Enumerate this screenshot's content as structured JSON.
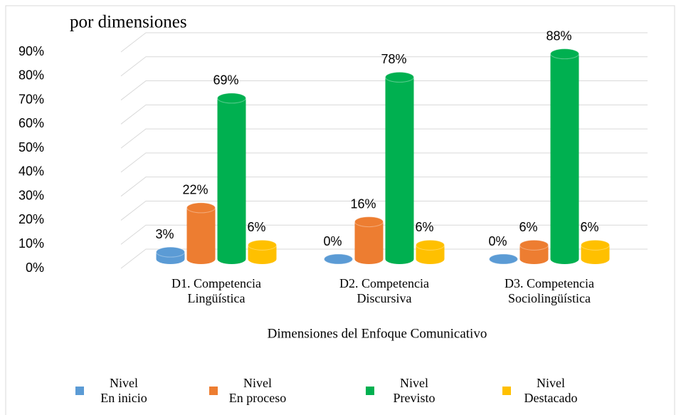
{
  "chart_data": {
    "type": "bar3d",
    "title": "por dimensiones",
    "x_label": "Dimensiones del Enfoque Comunicativo",
    "categories": [
      "D1.  Competencia\nLingüística",
      "D2. Competencia\nDiscursiva",
      "D3. Competencia\nSociolingüística"
    ],
    "series": [
      {
        "name": "Nivel\nEn inicio",
        "color": "#5b9bd5",
        "values": [
          3,
          0,
          0
        ],
        "value_labels": [
          "3%",
          "0%",
          "0%"
        ]
      },
      {
        "name": "Nivel\nEn proceso",
        "color": "#ed7d31",
        "values": [
          22,
          16,
          6
        ],
        "value_labels": [
          "22%",
          "16%",
          "6%"
        ]
      },
      {
        "name": "Nivel\nPrevisto",
        "color": "#00b050",
        "values": [
          69,
          78,
          88
        ],
        "value_labels": [
          "69%",
          "78%",
          "88%"
        ]
      },
      {
        "name": "Nivel\nDestacado",
        "color": "#ffc000",
        "values": [
          6,
          6,
          6
        ],
        "value_labels": [
          "6%",
          "6%",
          "6%"
        ]
      }
    ],
    "ylim": [
      0,
      90
    ],
    "yticks": [
      {
        "value": 0,
        "label": "0%"
      },
      {
        "value": 10,
        "label": "10%"
      },
      {
        "value": 20,
        "label": "20%"
      },
      {
        "value": 30,
        "label": "30%"
      },
      {
        "value": 40,
        "label": "40%"
      },
      {
        "value": 50,
        "label": "50%"
      },
      {
        "value": 60,
        "label": "60%"
      },
      {
        "value": 70,
        "label": "70%"
      },
      {
        "value": 80,
        "label": "80%"
      },
      {
        "value": 90,
        "label": "90%"
      }
    ],
    "grid": true,
    "legend": "bottom"
  }
}
